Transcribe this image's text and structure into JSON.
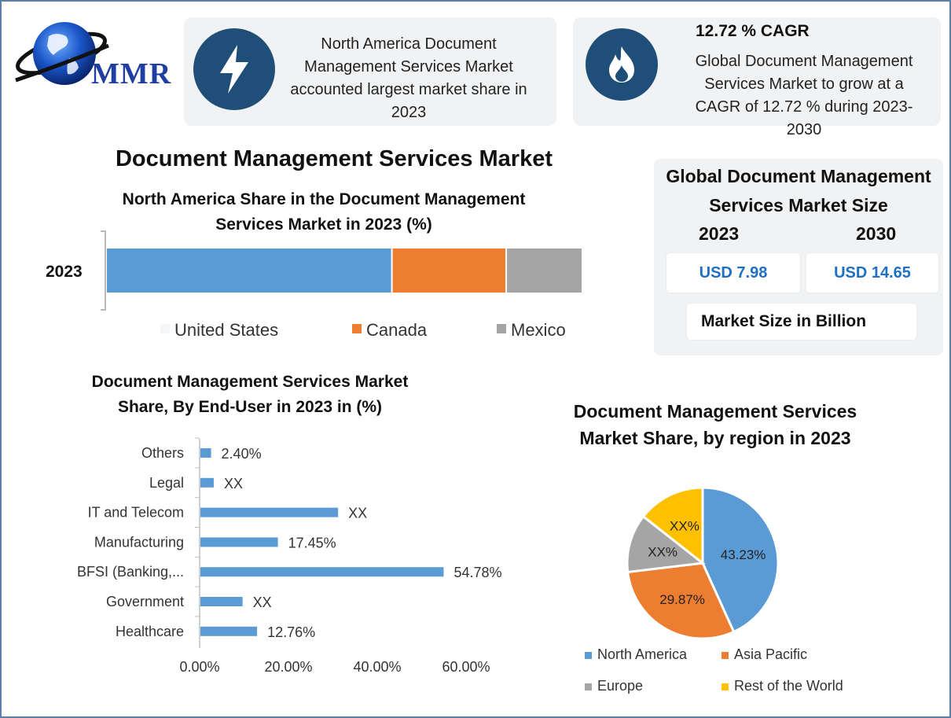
{
  "logo": {
    "text": "MMR",
    "icon": "globe-icon"
  },
  "card_left": {
    "icon": "lightning-icon",
    "text_lines": [
      "North America Document",
      "Management Services Market",
      "accounted largest market share in",
      "2023"
    ]
  },
  "card_right": {
    "icon": "flame-icon",
    "heading": "12.72 % CAGR",
    "text_lines": [
      "Global Document Management",
      "Services Market to grow at a",
      "CAGR of 12.72 % during 2023-",
      "2030"
    ]
  },
  "main_title": "Document Management Services Market",
  "size_panel": {
    "title_lines": [
      "Global Document Management",
      "Services Market Size"
    ],
    "year1": "2023",
    "year2": "2030",
    "value1": "USD 7.98",
    "value2": "USD 14.65",
    "unit_label": "Market Size in Billion",
    "colors": {
      "value_text": "#1f6fc4",
      "panel_bg": "#f1f2f4"
    }
  },
  "chart_data": [
    {
      "type": "bar",
      "orientation": "horizontal-stacked",
      "title_lines": [
        "North America Share in the Document Management",
        "Services Market in 2023 (%)"
      ],
      "categories": [
        "2023"
      ],
      "series": [
        {
          "name": "United States",
          "values": [
            60
          ],
          "color": "#5b9bd5"
        },
        {
          "name": "Canada",
          "values": [
            24
          ],
          "color": "#ed7d31"
        },
        {
          "name": "Mexico",
          "values": [
            16
          ],
          "color": "#a5a5a5"
        }
      ],
      "xlim": [
        0,
        100
      ],
      "legend": "bottom"
    },
    {
      "type": "bar",
      "orientation": "horizontal",
      "title_lines": [
        "Document Management Services Market",
        "Share, By End-User in 2023 in (%)"
      ],
      "categories": [
        "Others",
        "Legal",
        "IT and Telecom",
        "Manufacturing",
        "BFSI (Banking,...",
        "Government",
        "Healthcare"
      ],
      "values": [
        2.4,
        3.0,
        31.0,
        17.45,
        54.78,
        9.5,
        12.76
      ],
      "data_labels": [
        "2.40%",
        "XX",
        "XX",
        "17.45%",
        "54.78%",
        "XX",
        "12.76%"
      ],
      "xticks": [
        "0.00%",
        "20.00%",
        "40.00%",
        "60.00%"
      ],
      "xlim": [
        0,
        60
      ],
      "color": "#5b9bd5",
      "grid": false
    },
    {
      "type": "pie",
      "title_lines": [
        "Document Management Services",
        "Market Share, by region in 2023"
      ],
      "slices": [
        {
          "name": "North America",
          "value": 43.23,
          "label": "43.23%",
          "color": "#5b9bd5"
        },
        {
          "name": "Asia Pacific",
          "value": 29.87,
          "label": "29.87%",
          "color": "#ed7d31"
        },
        {
          "name": "Europe",
          "value": 12.5,
          "label": "XX%",
          "color": "#a5a5a5"
        },
        {
          "name": "Rest of the World",
          "value": 14.4,
          "label": "XX%",
          "color": "#ffc000"
        }
      ],
      "legend": "bottom"
    }
  ]
}
